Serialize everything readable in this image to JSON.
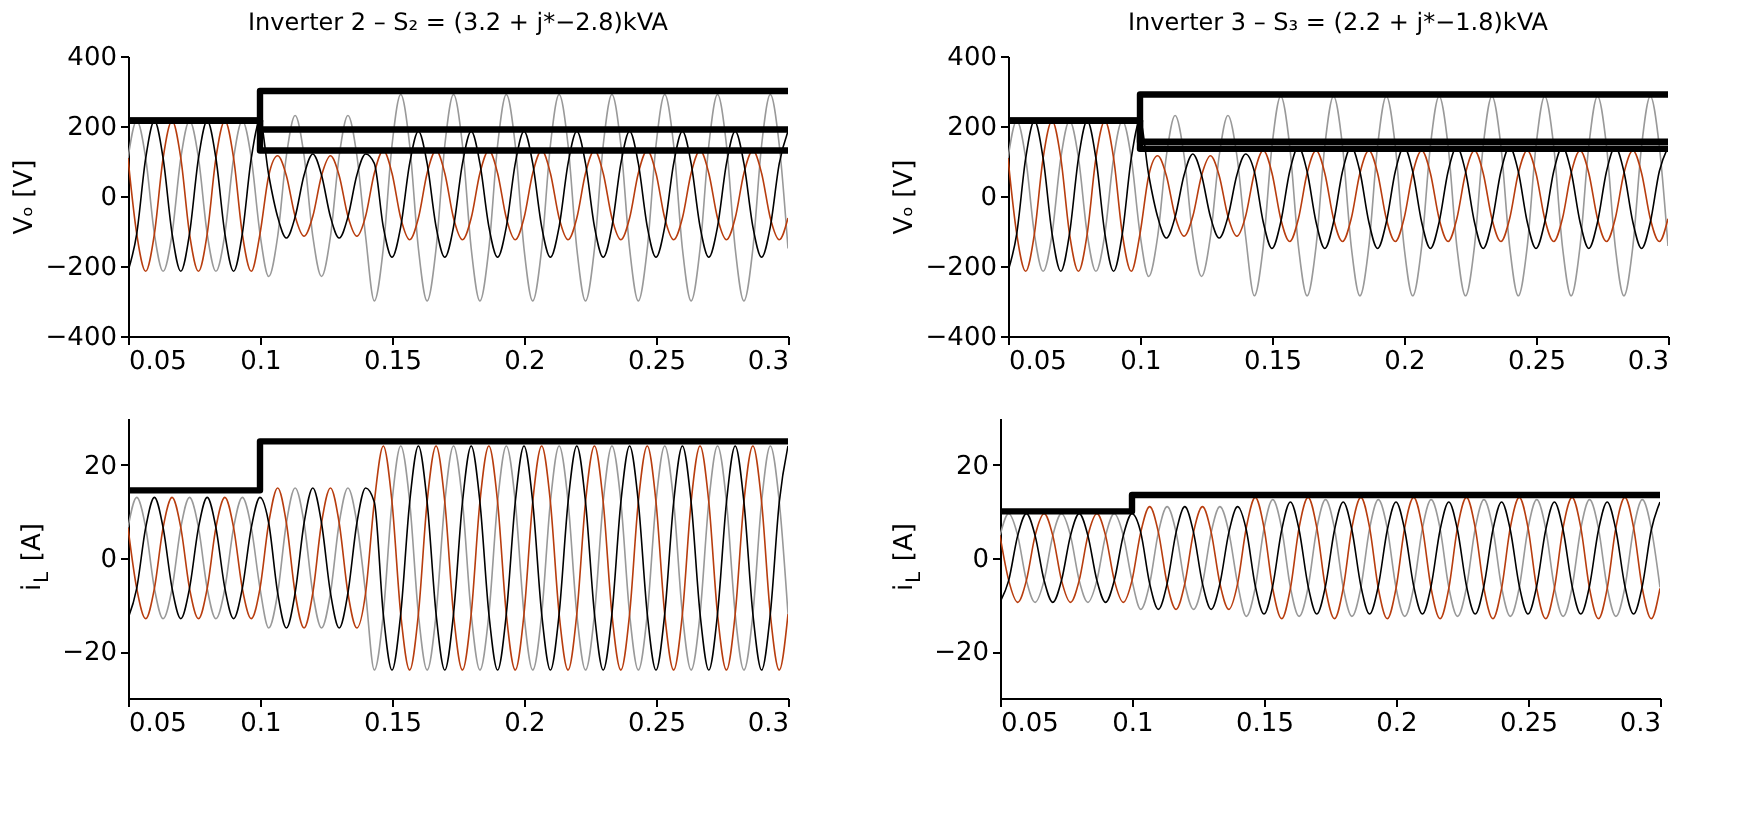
{
  "chart_data": [
    {
      "type": "line",
      "title": "Inverter 2 – S₂ = (3.2 + j*−2.8)kVA",
      "ylabel": "Vₒ [V]",
      "xlim": [
        0.05,
        0.3
      ],
      "xticks": [
        0.05,
        0.1,
        0.15,
        0.2,
        0.25,
        0.3
      ],
      "ylim": [
        -400,
        400
      ],
      "yticks": [
        -400,
        -200,
        0,
        200,
        400
      ],
      "grid": false,
      "x": [
        0.05,
        0.0533,
        0.0567,
        0.06,
        0.0633,
        0.0667,
        0.07,
        0.0733,
        0.0767,
        0.08,
        0.0833,
        0.0867,
        0.09,
        0.0933,
        0.0967,
        0.1,
        0.1033,
        0.1067,
        0.11,
        0.1133,
        0.1167,
        0.12,
        0.1233,
        0.1267,
        0.13,
        0.1333,
        0.1367,
        0.14,
        0.1433,
        0.1467,
        0.15,
        0.1533,
        0.1567,
        0.16,
        0.1633,
        0.1667,
        0.17,
        0.1733,
        0.1767,
        0.18,
        0.1833,
        0.1867,
        0.19,
        0.1933,
        0.1967,
        0.2,
        0.2033,
        0.2067,
        0.21,
        0.2133,
        0.2167,
        0.22,
        0.2233,
        0.2267,
        0.23,
        0.2333,
        0.2367,
        0.24,
        0.2433,
        0.2467,
        0.25,
        0.2533,
        0.2567,
        0.26,
        0.2633,
        0.2667,
        0.27,
        0.2733,
        0.2767,
        0.28,
        0.2833,
        0.2867,
        0.29,
        0.2933,
        0.2967,
        0.3
      ],
      "series": [
        {
          "color": "#999999",
          "values": [
            108,
            215,
            108,
            -108,
            -215,
            -108,
            108,
            215,
            108,
            -108,
            -215,
            -108,
            108,
            215,
            108,
            -108,
            -230,
            -115,
            115,
            230,
            115,
            -115,
            -230,
            -115,
            115,
            230,
            115,
            -115,
            -300,
            -150,
            145,
            290,
            145,
            -150,
            -300,
            -150,
            145,
            290,
            145,
            -150,
            -300,
            -150,
            145,
            290,
            145,
            -150,
            -300,
            -150,
            145,
            290,
            145,
            -150,
            -300,
            -150,
            145,
            290,
            145,
            -150,
            -300,
            -150,
            145,
            290,
            145,
            -150,
            -300,
            -150,
            145,
            290,
            145,
            -150,
            -300,
            -150,
            145,
            290,
            145,
            -150
          ]
        },
        {
          "color": "#b83d0e",
          "values": [
            108,
            -108,
            -215,
            -108,
            108,
            215,
            108,
            -108,
            -215,
            -108,
            108,
            215,
            108,
            -108,
            -215,
            -108,
            58,
            115,
            58,
            -58,
            -115,
            -58,
            58,
            115,
            58,
            -58,
            -115,
            -58,
            65,
            130,
            65,
            -63,
            -125,
            -63,
            65,
            130,
            65,
            -63,
            -125,
            -63,
            65,
            130,
            65,
            -63,
            -125,
            -63,
            65,
            130,
            65,
            -63,
            -125,
            -63,
            65,
            130,
            65,
            -63,
            -125,
            -63,
            65,
            130,
            65,
            -63,
            -125,
            -63,
            65,
            130,
            65,
            -63,
            -125,
            -63,
            65,
            130,
            65,
            -63,
            -125,
            -63
          ]
        },
        {
          "color": "#000000",
          "values": [
            -215,
            -108,
            108,
            215,
            108,
            -108,
            -215,
            -108,
            108,
            215,
            108,
            -108,
            -215,
            -108,
            108,
            215,
            60,
            -60,
            -120,
            -60,
            60,
            120,
            60,
            -60,
            -120,
            -60,
            60,
            120,
            93,
            -88,
            -175,
            -88,
            93,
            185,
            93,
            -88,
            -175,
            -88,
            93,
            185,
            93,
            -88,
            -175,
            -88,
            93,
            185,
            93,
            -88,
            -175,
            -88,
            93,
            185,
            93,
            -88,
            -175,
            -88,
            93,
            185,
            93,
            -88,
            -175,
            -88,
            93,
            185,
            93,
            -88,
            -175,
            -88,
            93,
            185,
            93,
            -88,
            -175,
            -88,
            93,
            185
          ]
        },
        {
          "type": "step",
          "color": "#000000",
          "x": [
            0.05,
            0.1,
            0.3
          ],
          "values": [
            215,
            300,
            300
          ]
        },
        {
          "type": "step",
          "color": "#000000",
          "x": [
            0.05,
            0.1,
            0.3
          ],
          "values": [
            215,
            190,
            190
          ]
        },
        {
          "type": "step",
          "color": "#000000",
          "x": [
            0.05,
            0.1,
            0.3
          ],
          "values": [
            215,
            130,
            130
          ]
        }
      ]
    },
    {
      "type": "line",
      "title": "Inverter 3 – S₃ = (2.2 + j*−1.8)kVA",
      "ylabel": "Vₒ [V]",
      "xlim": [
        0.05,
        0.3
      ],
      "xticks": [
        0.05,
        0.1,
        0.15,
        0.2,
        0.25,
        0.3
      ],
      "ylim": [
        -400,
        400
      ],
      "yticks": [
        -400,
        -200,
        0,
        200,
        400
      ],
      "grid": false,
      "x": [
        0.05,
        0.0533,
        0.0567,
        0.06,
        0.0633,
        0.0667,
        0.07,
        0.0733,
        0.0767,
        0.08,
        0.0833,
        0.0867,
        0.09,
        0.0933,
        0.0967,
        0.1,
        0.1033,
        0.1067,
        0.11,
        0.1133,
        0.1167,
        0.12,
        0.1233,
        0.1267,
        0.13,
        0.1333,
        0.1367,
        0.14,
        0.1433,
        0.1467,
        0.15,
        0.1533,
        0.1567,
        0.16,
        0.1633,
        0.1667,
        0.17,
        0.1733,
        0.1767,
        0.18,
        0.1833,
        0.1867,
        0.19,
        0.1933,
        0.1967,
        0.2,
        0.2033,
        0.2067,
        0.21,
        0.2133,
        0.2167,
        0.22,
        0.2233,
        0.2267,
        0.23,
        0.2333,
        0.2367,
        0.24,
        0.2433,
        0.2467,
        0.25,
        0.2533,
        0.2567,
        0.26,
        0.2633,
        0.2667,
        0.27,
        0.2733,
        0.2767,
        0.28,
        0.2833,
        0.2867,
        0.29,
        0.2933,
        0.2967,
        0.3
      ],
      "series": [
        {
          "color": "#999999",
          "values": [
            108,
            215,
            108,
            -108,
            -215,
            -108,
            108,
            215,
            108,
            -108,
            -215,
            -108,
            108,
            215,
            108,
            -108,
            -230,
            -115,
            115,
            230,
            115,
            -115,
            -230,
            -115,
            115,
            230,
            115,
            -115,
            -285,
            -143,
            143,
            285,
            143,
            -143,
            -285,
            -143,
            143,
            285,
            143,
            -143,
            -285,
            -143,
            143,
            285,
            143,
            -143,
            -285,
            -143,
            143,
            285,
            143,
            -143,
            -285,
            -143,
            143,
            285,
            143,
            -143,
            -285,
            -143,
            143,
            285,
            143,
            -143,
            -285,
            -143,
            143,
            285,
            143,
            -143,
            -285,
            -143,
            143,
            285,
            143,
            -143
          ]
        },
        {
          "color": "#b83d0e",
          "values": [
            108,
            -108,
            -215,
            -108,
            108,
            215,
            108,
            -108,
            -215,
            -108,
            108,
            215,
            108,
            -108,
            -215,
            -108,
            58,
            115,
            58,
            -58,
            -115,
            -58,
            58,
            115,
            58,
            -58,
            -115,
            -58,
            65,
            130,
            65,
            -65,
            -130,
            -65,
            65,
            130,
            65,
            -65,
            -130,
            -65,
            65,
            130,
            65,
            -65,
            -130,
            -65,
            65,
            130,
            65,
            -65,
            -130,
            -65,
            65,
            130,
            65,
            -65,
            -130,
            -65,
            65,
            130,
            65,
            -65,
            -130,
            -65,
            65,
            130,
            65,
            -65,
            -130,
            -65,
            65,
            130,
            65,
            -65,
            -130,
            -65
          ]
        },
        {
          "color": "#000000",
          "values": [
            -215,
            -108,
            108,
            215,
            108,
            -108,
            -215,
            -108,
            108,
            215,
            108,
            -108,
            -215,
            -108,
            108,
            215,
            60,
            -60,
            -120,
            -60,
            60,
            120,
            60,
            -60,
            -120,
            -60,
            60,
            120,
            70,
            -75,
            -150,
            -75,
            70,
            140,
            70,
            -75,
            -150,
            -75,
            70,
            140,
            70,
            -75,
            -150,
            -75,
            70,
            140,
            70,
            -75,
            -150,
            -75,
            70,
            140,
            70,
            -75,
            -150,
            -75,
            70,
            140,
            70,
            -75,
            -150,
            -75,
            70,
            140,
            70,
            -75,
            -150,
            -75,
            70,
            140,
            70,
            -75,
            -150,
            -75,
            70,
            140
          ]
        },
        {
          "type": "step",
          "color": "#000000",
          "x": [
            0.05,
            0.1,
            0.3
          ],
          "values": [
            215,
            290,
            290
          ]
        },
        {
          "type": "step",
          "color": "#000000",
          "x": [
            0.05,
            0.1,
            0.3
          ],
          "values": [
            215,
            155,
            155
          ]
        },
        {
          "type": "step",
          "color": "#000000",
          "x": [
            0.05,
            0.1,
            0.3
          ],
          "values": [
            215,
            135,
            135
          ]
        }
      ]
    },
    {
      "type": "line",
      "ylabel": "i$_{L}$ [A]",
      "xlim": [
        0.05,
        0.3
      ],
      "xticks": [
        0.05,
        0.1,
        0.15,
        0.2,
        0.25,
        0.3
      ],
      "ylim": [
        -30,
        30
      ],
      "yticks": [
        -20,
        0,
        20
      ],
      "grid": false,
      "x": [
        0.05,
        0.0533,
        0.0567,
        0.06,
        0.0633,
        0.0667,
        0.07,
        0.0733,
        0.0767,
        0.08,
        0.0833,
        0.0867,
        0.09,
        0.0933,
        0.0967,
        0.1,
        0.1033,
        0.1067,
        0.11,
        0.1133,
        0.1167,
        0.12,
        0.1233,
        0.1267,
        0.13,
        0.1333,
        0.1367,
        0.14,
        0.1433,
        0.1467,
        0.15,
        0.1533,
        0.1567,
        0.16,
        0.1633,
        0.1667,
        0.17,
        0.1733,
        0.1767,
        0.18,
        0.1833,
        0.1867,
        0.19,
        0.1933,
        0.1967,
        0.2,
        0.2033,
        0.2067,
        0.21,
        0.2133,
        0.2167,
        0.22,
        0.2233,
        0.2267,
        0.23,
        0.2333,
        0.2367,
        0.24,
        0.2433,
        0.2467,
        0.25,
        0.2533,
        0.2567,
        0.26,
        0.2633,
        0.2667,
        0.27,
        0.2733,
        0.2767,
        0.28,
        0.2833,
        0.2867,
        0.29,
        0.2933,
        0.2967,
        0.3
      ],
      "series": [
        {
          "color": "#999999",
          "values": [
            6.5,
            13,
            6.5,
            -6.5,
            -13,
            -6.5,
            6.5,
            13,
            6.5,
            -6.5,
            -13,
            -6.5,
            6.5,
            13,
            6.5,
            -6.5,
            -15,
            -7.5,
            7.5,
            15,
            7.5,
            -7.5,
            -15,
            -7.5,
            7.5,
            15,
            7.5,
            -7.5,
            -24,
            -12,
            12,
            24,
            12,
            -12,
            -24,
            -12,
            12,
            24,
            12,
            -12,
            -24,
            -12,
            12,
            24,
            12,
            -12,
            -24,
            -12,
            12,
            24,
            12,
            -12,
            -24,
            -12,
            12,
            24,
            12,
            -12,
            -24,
            -12,
            12,
            24,
            12,
            -12,
            -24,
            -12,
            12,
            24,
            12,
            -12,
            -24,
            -12,
            12,
            24,
            12,
            -12
          ]
        },
        {
          "color": "#b83d0e",
          "values": [
            6.5,
            -6.5,
            -13,
            -6.5,
            6.5,
            13,
            6.5,
            -6.5,
            -13,
            -6.5,
            6.5,
            13,
            6.5,
            -6.5,
            -13,
            -6.5,
            7.5,
            15,
            7.5,
            -7.5,
            -15,
            -7.5,
            7.5,
            15,
            7.5,
            -7.5,
            -15,
            -7.5,
            12,
            24,
            12,
            -12,
            -24,
            -12,
            12,
            24,
            12,
            -12,
            -24,
            -12,
            12,
            24,
            12,
            -12,
            -24,
            -12,
            12,
            24,
            12,
            -12,
            -24,
            -12,
            12,
            24,
            12,
            -12,
            -24,
            -12,
            12,
            24,
            12,
            -12,
            -24,
            -12,
            12,
            24,
            12,
            -12,
            -24,
            -12,
            12,
            24,
            12,
            -12,
            -24,
            -12
          ]
        },
        {
          "color": "#000000",
          "values": [
            -13,
            -6.5,
            6.5,
            13,
            6.5,
            -6.5,
            -13,
            -6.5,
            6.5,
            13,
            6.5,
            -6.5,
            -13,
            -6.5,
            6.5,
            13,
            7.5,
            -7.5,
            -15,
            -7.5,
            7.5,
            15,
            7.5,
            -7.5,
            -15,
            -7.5,
            7.5,
            15,
            12,
            -12,
            -24,
            -12,
            12,
            24,
            12,
            -12,
            -24,
            -12,
            12,
            24,
            12,
            -12,
            -24,
            -12,
            12,
            24,
            12,
            -12,
            -24,
            -12,
            12,
            24,
            12,
            -12,
            -24,
            -12,
            12,
            24,
            12,
            -12,
            -24,
            -12,
            12,
            24,
            12,
            -12,
            -24,
            -12,
            12,
            24,
            12,
            -12,
            -24,
            -12,
            12,
            24
          ]
        },
        {
          "type": "step",
          "color": "#000000",
          "x": [
            0.05,
            0.1,
            0.3
          ],
          "values": [
            14.5,
            25,
            25
          ]
        }
      ]
    },
    {
      "type": "line",
      "ylabel": "i$_{L}$ [A]",
      "xlim": [
        0.05,
        0.3
      ],
      "xticks": [
        0.05,
        0.1,
        0.15,
        0.2,
        0.25,
        0.3
      ],
      "ylim": [
        -30,
        30
      ],
      "yticks": [
        -20,
        0,
        20
      ],
      "grid": false,
      "x": [
        0.05,
        0.0533,
        0.0567,
        0.06,
        0.0633,
        0.0667,
        0.07,
        0.0733,
        0.0767,
        0.08,
        0.0833,
        0.0867,
        0.09,
        0.0933,
        0.0967,
        0.1,
        0.1033,
        0.1067,
        0.11,
        0.1133,
        0.1167,
        0.12,
        0.1233,
        0.1267,
        0.13,
        0.1333,
        0.1367,
        0.14,
        0.1433,
        0.1467,
        0.15,
        0.1533,
        0.1567,
        0.16,
        0.1633,
        0.1667,
        0.17,
        0.1733,
        0.1767,
        0.18,
        0.1833,
        0.1867,
        0.19,
        0.1933,
        0.1967,
        0.2,
        0.2033,
        0.2067,
        0.21,
        0.2133,
        0.2167,
        0.22,
        0.2233,
        0.2267,
        0.23,
        0.2333,
        0.2367,
        0.24,
        0.2433,
        0.2467,
        0.25,
        0.2533,
        0.2567,
        0.26,
        0.2633,
        0.2667,
        0.27,
        0.2733,
        0.2767,
        0.28,
        0.2833,
        0.2867,
        0.29,
        0.2933,
        0.2967,
        0.3
      ],
      "series": [
        {
          "color": "#999999",
          "values": [
            4.8,
            9.5,
            4.8,
            -4.8,
            -9.5,
            -4.8,
            4.8,
            9.5,
            4.8,
            -4.8,
            -9.5,
            -4.8,
            4.8,
            9.5,
            4.8,
            -4.8,
            -11,
            -5.5,
            5.5,
            11,
            5.5,
            -5.5,
            -11,
            -5.5,
            5.5,
            11,
            5.5,
            -5.5,
            -12.5,
            -6.3,
            6.3,
            12.5,
            6.3,
            -6.3,
            -12.5,
            -6.3,
            6.3,
            12.5,
            6.3,
            -6.3,
            -12.5,
            -6.3,
            6.3,
            12.5,
            6.3,
            -6.3,
            -12.5,
            -6.3,
            6.3,
            12.5,
            6.3,
            -6.3,
            -12.5,
            -6.3,
            6.3,
            12.5,
            6.3,
            -6.3,
            -12.5,
            -6.3,
            6.3,
            12.5,
            6.3,
            -6.3,
            -12.5,
            -6.3,
            6.3,
            12.5,
            6.3,
            -6.3,
            -12.5,
            -6.3,
            6.3,
            12.5,
            6.3,
            -6.3
          ]
        },
        {
          "color": "#b83d0e",
          "values": [
            4.8,
            -4.8,
            -9.5,
            -4.8,
            4.8,
            9.5,
            4.8,
            -4.8,
            -9.5,
            -4.8,
            4.8,
            9.5,
            4.8,
            -4.8,
            -9.5,
            -4.8,
            5.5,
            11,
            5.5,
            -5.5,
            -11,
            -5.5,
            5.5,
            11,
            5.5,
            -5.5,
            -11,
            -5.5,
            6.5,
            13,
            6.5,
            -6.5,
            -13,
            -6.5,
            6.5,
            13,
            6.5,
            -6.5,
            -13,
            -6.5,
            6.5,
            13,
            6.5,
            -6.5,
            -13,
            -6.5,
            6.5,
            13,
            6.5,
            -6.5,
            -13,
            -6.5,
            6.5,
            13,
            6.5,
            -6.5,
            -13,
            -6.5,
            6.5,
            13,
            6.5,
            -6.5,
            -13,
            -6.5,
            6.5,
            13,
            6.5,
            -6.5,
            -13,
            -6.5,
            6.5,
            13,
            6.5,
            -6.5,
            -13,
            -6.5
          ]
        },
        {
          "color": "#000000",
          "values": [
            -9.5,
            -4.8,
            4.8,
            9.5,
            4.8,
            -4.8,
            -9.5,
            -4.8,
            4.8,
            9.5,
            4.8,
            -4.8,
            -9.5,
            -4.8,
            4.8,
            9.5,
            5.5,
            -5.5,
            -11,
            -5.5,
            5.5,
            11,
            5.5,
            -5.5,
            -11,
            -5.5,
            5.5,
            11,
            6,
            -6,
            -12,
            -6,
            6,
            12,
            6,
            -6,
            -12,
            -6,
            6,
            12,
            6,
            -6,
            -12,
            -6,
            6,
            12,
            6,
            -6,
            -12,
            -6,
            6,
            12,
            6,
            -6,
            -12,
            -6,
            6,
            12,
            6,
            -6,
            -12,
            -6,
            6,
            12,
            6,
            -6,
            -12,
            -6,
            6,
            12,
            6,
            -6,
            -12,
            -6,
            6,
            12
          ]
        },
        {
          "type": "step",
          "color": "#000000",
          "x": [
            0.05,
            0.1,
            0.3
          ],
          "values": [
            10,
            13.5,
            13.5
          ]
        }
      ]
    }
  ]
}
